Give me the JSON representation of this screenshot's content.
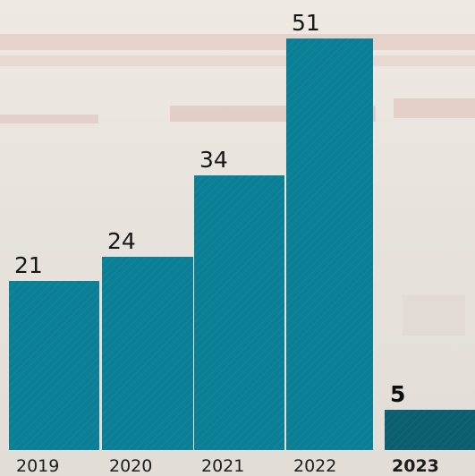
{
  "chart_data": {
    "type": "bar",
    "title": "",
    "xlabel": "",
    "ylabel": "",
    "categories": [
      "2019",
      "2020",
      "2021",
      "2022",
      "2023"
    ],
    "values": [
      21,
      24,
      34,
      51,
      5
    ],
    "value_labels": [
      "21",
      "24",
      "34",
      "51",
      "5"
    ],
    "ylim": [
      0,
      51
    ],
    "grid": false,
    "legend": "none",
    "colors": {
      "bar": "#0a7f95",
      "highlight_bar": "#0b5f6f",
      "background": "#e9e3dc"
    },
    "highlight_index": 4
  }
}
